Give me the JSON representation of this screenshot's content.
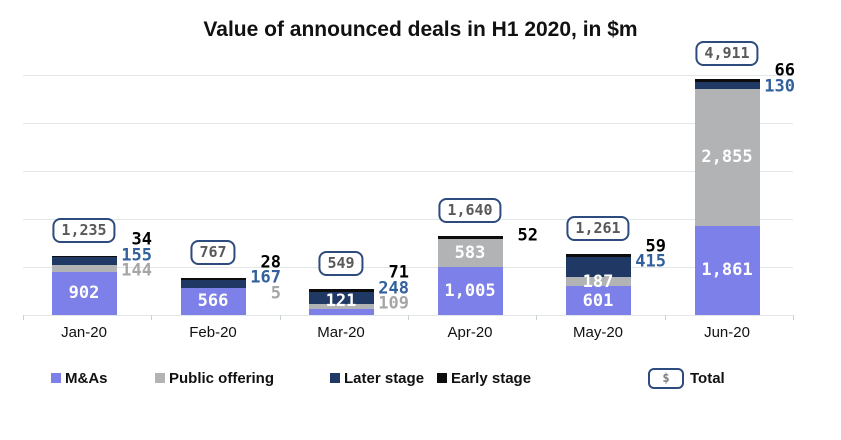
{
  "title": "Value of announced deals in H1 2020, in $m",
  "chart_data": {
    "type": "bar",
    "stacked": true,
    "title": "Value of announced deals in H1 2020, in $m",
    "categories": [
      "Jan-20",
      "Feb-20",
      "Mar-20",
      "Apr-20",
      "May-20",
      "Jun-20"
    ],
    "series": [
      {
        "name": "M&As",
        "color": "#7c80e8",
        "label_color_inside": "#ffffff",
        "values": [
          902,
          566,
          121,
          1005,
          601,
          1861
        ]
      },
      {
        "name": "Public offering",
        "color": "#b1b3b5",
        "side_label_color": "#a6a6a6",
        "values": [
          144,
          5,
          109,
          583,
          187,
          2855
        ]
      },
      {
        "name": "Later stage",
        "color": "#1f3864",
        "side_label_color": "#31609c",
        "values": [
          155,
          167,
          248,
          0,
          415,
          130
        ]
      },
      {
        "name": "Early stage",
        "color": "#0d0d0d",
        "side_label_color": "#000000",
        "values": [
          34,
          28,
          71,
          52,
          59,
          66
        ]
      }
    ],
    "totals": [
      1235,
      767,
      549,
      1640,
      1261,
      4911
    ],
    "ylim": [
      0,
      5000
    ],
    "gridline_step": 1000,
    "grid": true,
    "legend_position": "bottom"
  },
  "legend": {
    "items": [
      "M&As",
      "Public offering",
      "Later stage",
      "Early stage"
    ],
    "total_label": "Total",
    "total_symbol": "$"
  },
  "colors": {
    "grid": "#e2e8e8",
    "total_box_border": "#2e4b7d",
    "total_text": "#595959",
    "axis_text": "#111111"
  }
}
